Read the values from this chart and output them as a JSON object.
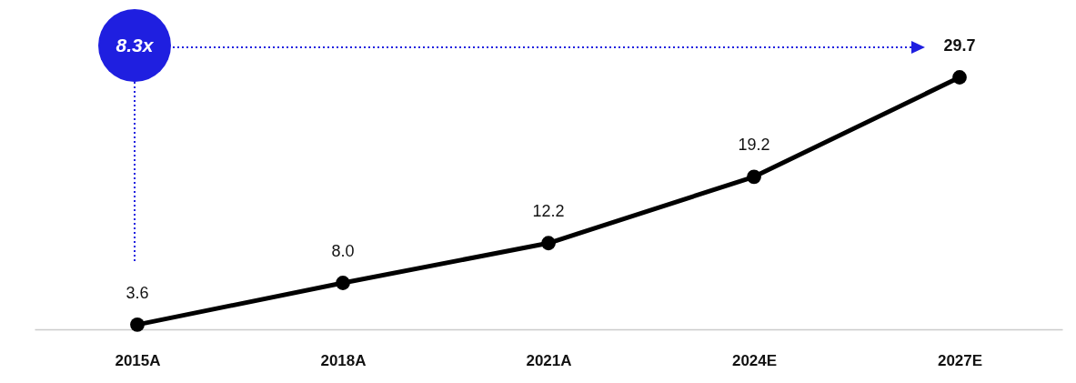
{
  "chart_data": {
    "type": "line",
    "categories": [
      "2015A",
      "2018A",
      "2021A",
      "2024E",
      "2027E"
    ],
    "series": [
      {
        "color": "#000000",
        "values": [
          3.6,
          8.0,
          12.2,
          19.2,
          29.7
        ],
        "value_labels": [
          "3.6",
          "8.0",
          "12.2",
          "19.2",
          "29.7"
        ]
      }
    ],
    "marker": "circle",
    "line_style": "solid",
    "grid": false,
    "legend": false,
    "annotations": [
      "8.3x"
    ]
  }
}
